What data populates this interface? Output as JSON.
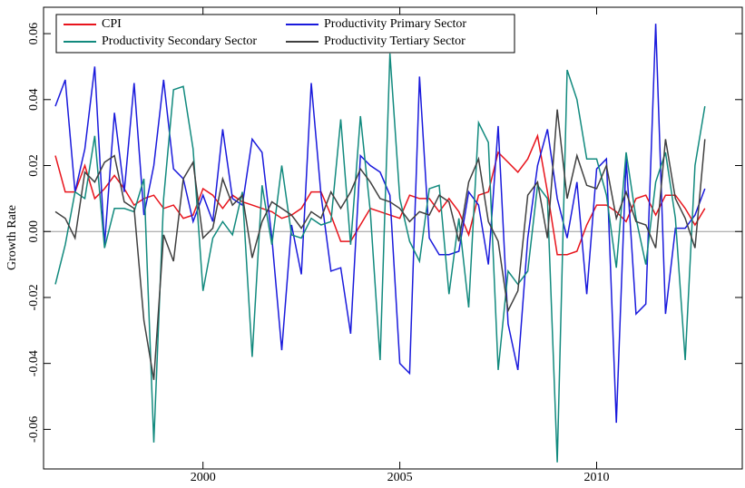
{
  "chart_data": {
    "type": "line",
    "ylabel": "Growth Rate",
    "x": [
      1996.25,
      1996.5,
      1996.75,
      1997,
      1997.25,
      1997.5,
      1997.75,
      1998,
      1998.25,
      1998.5,
      1998.75,
      1999,
      1999.25,
      1999.5,
      1999.75,
      2000,
      2000.25,
      2000.5,
      2000.75,
      2001,
      2001.25,
      2001.5,
      2001.75,
      2002,
      2002.25,
      2002.5,
      2002.75,
      2003,
      2003.25,
      2003.5,
      2003.75,
      2004,
      2004.25,
      2004.5,
      2004.75,
      2005,
      2005.25,
      2005.5,
      2005.75,
      2006,
      2006.25,
      2006.5,
      2006.75,
      2007,
      2007.25,
      2007.5,
      2007.75,
      2008,
      2008.25,
      2008.5,
      2008.75,
      2009,
      2009.25,
      2009.5,
      2009.75,
      2010,
      2010.25,
      2010.5,
      2010.75,
      2011,
      2011.25,
      2011.5,
      2011.75,
      2012,
      2012.25,
      2012.5,
      2012.75
    ],
    "series": [
      {
        "name": "CPI",
        "color": "#e8141c",
        "values": [
          0.023,
          0.012,
          0.012,
          0.02,
          0.01,
          0.013,
          0.017,
          0.013,
          0.008,
          0.01,
          0.011,
          0.007,
          0.008,
          0.004,
          0.005,
          0.013,
          0.011,
          0.007,
          0.011,
          0.009,
          0.008,
          0.007,
          0.006,
          0.004,
          0.005,
          0.007,
          0.012,
          0.012,
          0.005,
          -0.003,
          -0.003,
          0.002,
          0.007,
          0.006,
          0.005,
          0.004,
          0.011,
          0.01,
          0.01,
          0.006,
          0.01,
          0.006,
          -0.001,
          0.011,
          0.012,
          0.024,
          0.021,
          0.018,
          0.022,
          0.029,
          0.012,
          -0.007,
          -0.007,
          -0.006,
          0.002,
          0.008,
          0.008,
          0.006,
          0.003,
          0.01,
          0.011,
          0.005,
          0.011,
          0.011,
          0.007,
          0.002,
          0.007
        ]
      },
      {
        "name": "Productivity Primary Sector",
        "color": "#1a1adc",
        "values": [
          0.038,
          0.046,
          0.012,
          0.025,
          0.05,
          -0.004,
          0.036,
          0.012,
          0.045,
          0.005,
          0.02,
          0.046,
          0.019,
          0.016,
          0.003,
          0.011,
          0.003,
          0.031,
          0.01,
          0.008,
          0.028,
          0.024,
          -0.002,
          -0.036,
          0.002,
          -0.013,
          0.045,
          0.011,
          -0.012,
          -0.011,
          -0.031,
          0.023,
          0.02,
          0.018,
          0.011,
          -0.04,
          -0.043,
          0.047,
          -0.002,
          -0.007,
          -0.007,
          -0.006,
          0.012,
          0.008,
          -0.01,
          0.032,
          -0.028,
          -0.042,
          -0.002,
          0.02,
          0.031,
          0.01,
          -0.002,
          0.015,
          -0.019,
          0.019,
          0.022,
          -0.058,
          0.022,
          -0.025,
          -0.022,
          0.063,
          -0.025,
          0.001,
          0.001,
          0.005,
          0.013
        ]
      },
      {
        "name": "Productivity Secondary Sector",
        "color": "#128a7e",
        "values": [
          -0.016,
          -0.004,
          0.012,
          0.01,
          0.029,
          -0.005,
          0.007,
          0.007,
          0.006,
          0.016,
          -0.064,
          0.01,
          0.043,
          0.044,
          0.025,
          -0.018,
          -0.002,
          0.003,
          -0.001,
          0.012,
          -0.038,
          0.014,
          -0.004,
          0.02,
          -0.001,
          -0.002,
          0.004,
          0.002,
          0.003,
          0.034,
          -0.004,
          0.035,
          0.006,
          -0.039,
          0.054,
          0.01,
          -0.003,
          -0.009,
          0.013,
          0.014,
          -0.019,
          0.004,
          -0.023,
          0.033,
          0.027,
          -0.042,
          -0.012,
          -0.016,
          -0.012,
          0.014,
          0.01,
          -0.07,
          0.049,
          0.04,
          0.022,
          0.022,
          0.011,
          -0.011,
          0.024,
          0.004,
          -0.01,
          0.015,
          0.024,
          0.004,
          -0.039,
          0.02,
          0.038
        ]
      },
      {
        "name": "Productivity Tertiary Sector",
        "color": "#404040",
        "values": [
          0.006,
          0.004,
          -0.002,
          0.018,
          0.015,
          0.021,
          0.023,
          0.009,
          0.007,
          -0.027,
          -0.045,
          -0.001,
          -0.009,
          0.016,
          0.021,
          -0.002,
          0.001,
          0.016,
          0.008,
          0.011,
          -0.008,
          0.003,
          0.009,
          0.007,
          0.005,
          0.001,
          0.006,
          0.004,
          0.012,
          0.007,
          0.012,
          0.019,
          0.015,
          0.01,
          0.009,
          0.007,
          0.003,
          0.006,
          0.005,
          0.011,
          0.009,
          -0.003,
          0.015,
          0.022,
          0.003,
          -0.003,
          -0.024,
          -0.018,
          0.011,
          0.015,
          -0.002,
          0.037,
          0.01,
          0.023,
          0.014,
          0.013,
          0.02,
          0.004,
          0.012,
          0.003,
          0.002,
          -0.005,
          0.028,
          0.01,
          0.004,
          -0.005,
          0.028
        ]
      }
    ],
    "xlim": [
      1995.95,
      2013.7
    ],
    "xticks": [
      2000,
      2005,
      2010
    ],
    "ylim": [
      -0.072,
      0.068
    ],
    "yticks": [
      -0.06,
      -0.04,
      -0.02,
      {
        "value": 0,
        "label": "0.00"
      },
      0.02,
      0.04,
      0.06
    ],
    "legend": "upper left"
  }
}
